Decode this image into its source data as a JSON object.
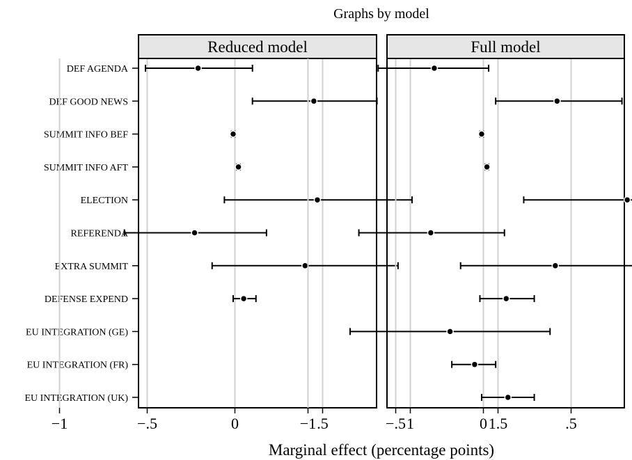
{
  "chart_data": {
    "type": "scatter",
    "title": "Graphs by model",
    "xlabel": "Marginal effect (percentage points)",
    "ylabel": "",
    "xlim": [
      -1.1,
      1.6
    ],
    "xticks": [
      -1,
      -0.5,
      0,
      0.5,
      1,
      1.5
    ],
    "xtick_labels": [
      "−1",
      "−.5",
      "0",
      ".5",
      "1",
      "1.5"
    ],
    "grid": "vertical",
    "categories": [
      "DEF AGENDA",
      "DEF GOOD NEWS",
      "SUMMIT INFO BEF",
      "SUMMIT INFO AFT",
      "ELECTION",
      "REFERENDA",
      "EXTRA SUMMIT",
      "DEFENSE EXPEND",
      "EU INTEGRATION (GE)",
      "EU INTEGRATION (FR)",
      "EU INTEGRATION (UK)"
    ],
    "panels": [
      {
        "name": "Reduced model",
        "estimates": [
          -0.21,
          0.45,
          -0.01,
          0.02,
          0.47,
          -0.23,
          0.4,
          0.05,
          null,
          null,
          null
        ],
        "lower": [
          -0.51,
          0.1,
          -0.02,
          0.01,
          -0.06,
          -0.63,
          -0.13,
          -0.01,
          null,
          null,
          null
        ],
        "upper": [
          0.1,
          0.81,
          0.0,
          0.03,
          1.01,
          0.18,
          0.93,
          0.12,
          null,
          null,
          null
        ]
      },
      {
        "name": "Full model",
        "estimates": [
          -0.28,
          0.42,
          -0.01,
          0.02,
          0.82,
          -0.3,
          0.41,
          0.13,
          -0.19,
          -0.05,
          0.14
        ],
        "lower": [
          -0.6,
          0.07,
          -0.02,
          0.01,
          0.23,
          -0.71,
          -0.13,
          -0.02,
          -0.76,
          -0.18,
          -0.01
        ],
        "upper": [
          0.03,
          0.79,
          0.0,
          0.03,
          1.42,
          0.12,
          0.95,
          0.29,
          0.38,
          0.07,
          0.29
        ]
      }
    ]
  }
}
